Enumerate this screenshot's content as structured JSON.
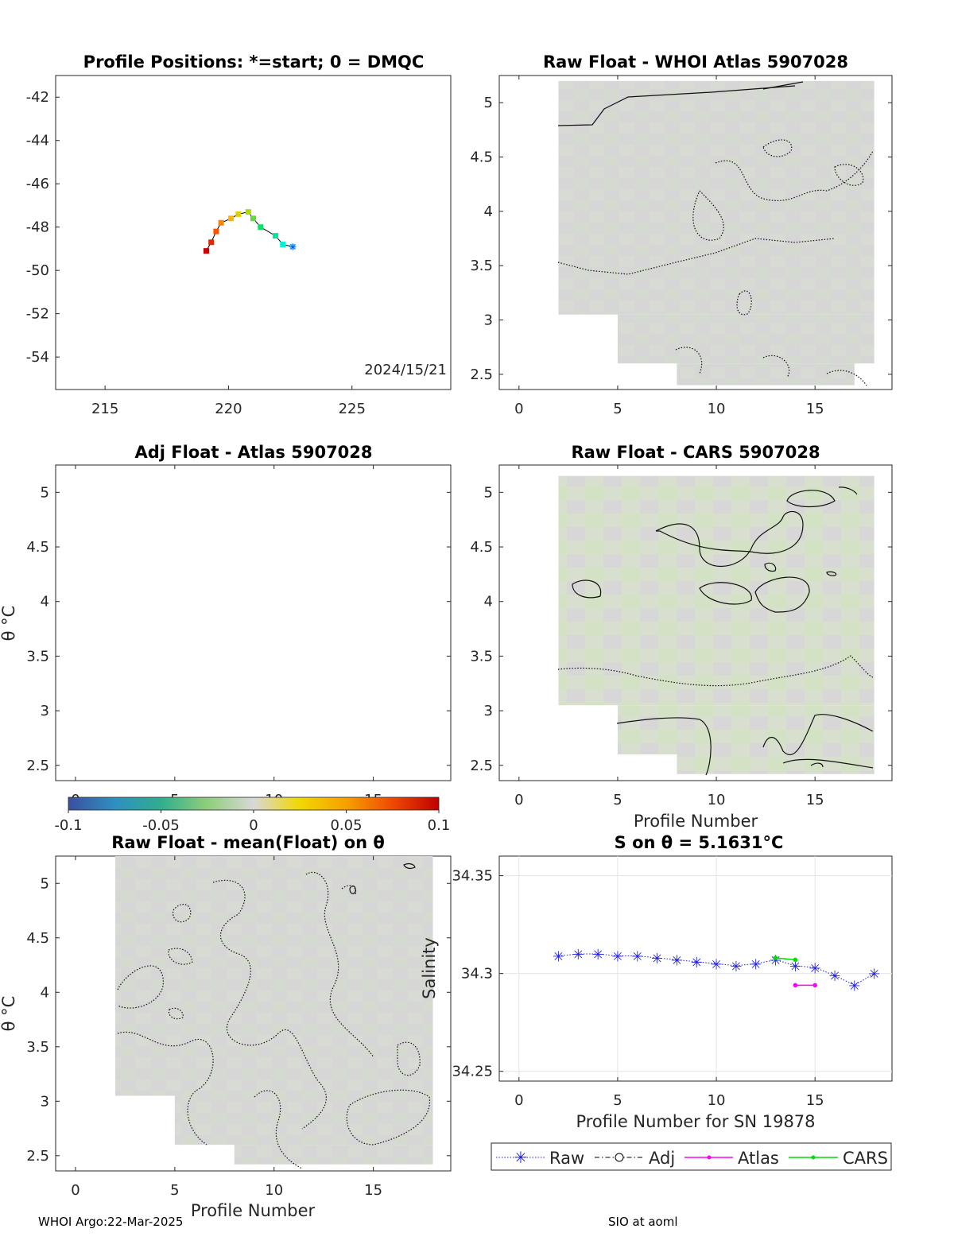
{
  "colors": {
    "heat_base": "#d6d6d6",
    "heat_green": "#d2e0c4",
    "raw": "#1f1fe6",
    "adj": "#000000",
    "atlas": "#ff00ff",
    "cars": "#00dd00"
  },
  "colorbar": {
    "ticks": [
      "-0.1",
      "-0.05",
      "0",
      "0.05",
      "0.1"
    ],
    "range": [
      -0.1,
      0.1
    ],
    "stops": [
      "#3b4fa0",
      "#2f8fc0",
      "#2fae8e",
      "#8fce7a",
      "#d8d8d8",
      "#f1d800",
      "#f7a000",
      "#ee4a00",
      "#c00000"
    ]
  },
  "panels": {
    "positions": {
      "title": "Profile Positions: *=start; 0 = DMQC",
      "date": "2024/15/21",
      "xticks": [
        "215",
        "220",
        "225"
      ],
      "yticks": [
        "-42",
        "-44",
        "-46",
        "-48",
        "-50",
        "-52",
        "-54"
      ]
    },
    "whoi": {
      "title": "Raw Float - WHOI Atlas  5907028"
    },
    "adj": {
      "title": "Adj Float - Atlas  5907028",
      "ylabel": "θ °C"
    },
    "cars": {
      "title": "Raw Float - CARS  5907028",
      "xlabel": "Profile Number"
    },
    "mean": {
      "title": "Raw Float - mean(Float) on θ",
      "ylabel": "θ °C",
      "xlabel": "Profile Number"
    },
    "salinity": {
      "title": "S on θ = 5.1631°C",
      "xlabel": "Profile Number for SN 19878",
      "ylabel": "Salinity"
    }
  },
  "theta_ticks": [
    "5",
    "4.5",
    "4",
    "3.5",
    "3",
    "2.5"
  ],
  "profile_ticks": [
    "0",
    "5",
    "10",
    "15"
  ],
  "legend": {
    "raw": "Raw",
    "adj": "Adj",
    "atlas": "Atlas",
    "cars": "CARS"
  },
  "footer": {
    "left": "WHOI Argo:22-Mar-2025",
    "right": "SIO at aoml"
  },
  "chart_data": [
    {
      "type": "scatter",
      "title": "Profile Positions: *=start; 0 = DMQC",
      "xlim": [
        213,
        229
      ],
      "ylim": [
        -55.5,
        -41
      ],
      "x": [
        222.6,
        222.2,
        221.9,
        221.3,
        221.0,
        220.8,
        220.4,
        220.1,
        219.7,
        219.5,
        219.3,
        219.1
      ],
      "y": [
        -48.9,
        -48.8,
        -48.4,
        -48.0,
        -47.6,
        -47.3,
        -47.4,
        -47.6,
        -47.8,
        -48.2,
        -48.7,
        -49.1
      ]
    },
    {
      "type": "heatmap",
      "title": "Raw Float - WHOI Atlas  5907028",
      "xlim": [
        -1,
        18.9
      ],
      "ylim": [
        2.36,
        5.25
      ],
      "rows": [
        {
          "x0": 2,
          "x1": 18,
          "y0": 3.05,
          "y1": 5.2
        },
        {
          "x0": 5,
          "x1": 18,
          "y0": 2.6,
          "y1": 3.05
        },
        {
          "x0": 8,
          "x1": 17,
          "y0": 2.4,
          "y1": 2.6
        }
      ]
    },
    {
      "type": "heatmap",
      "title": "Adj Float - Atlas  5907028",
      "xlim": [
        -1,
        18.9
      ],
      "ylim": [
        2.36,
        5.25
      ],
      "rows": []
    },
    {
      "type": "heatmap",
      "title": "Raw Float - CARS  5907028",
      "xlim": [
        -1,
        18.9
      ],
      "ylim": [
        2.36,
        5.25
      ],
      "rows": [
        {
          "x0": 2,
          "x1": 18,
          "y0": 3.05,
          "y1": 5.15
        },
        {
          "x0": 5,
          "x1": 18,
          "y0": 2.6,
          "y1": 3.05
        },
        {
          "x0": 8,
          "x1": 18,
          "y0": 2.42,
          "y1": 2.6
        }
      ]
    },
    {
      "type": "heatmap",
      "title": "Raw Float - mean(Float) on θ",
      "xlim": [
        -1,
        18.9
      ],
      "ylim": [
        2.36,
        5.25
      ],
      "rows": [
        {
          "x0": 2,
          "x1": 18,
          "y0": 3.05,
          "y1": 5.25
        },
        {
          "x0": 5,
          "x1": 18,
          "y0": 2.6,
          "y1": 3.05
        },
        {
          "x0": 8,
          "x1": 18,
          "y0": 2.42,
          "y1": 2.6
        }
      ]
    },
    {
      "type": "line",
      "title": "S on θ = 5.1631°C",
      "xlabel": "Profile Number for SN 19878",
      "ylabel": "Salinity",
      "xlim": [
        -1,
        18.9
      ],
      "ylim": [
        34.245,
        34.36
      ],
      "yticks": [
        "34.35",
        "34.3",
        "34.25"
      ],
      "series": [
        {
          "name": "Raw",
          "x": [
            2,
            3,
            4,
            5,
            6,
            7,
            8,
            9,
            10,
            11,
            12,
            13,
            14,
            15,
            16,
            17,
            18
          ],
          "y": [
            34.309,
            34.31,
            34.31,
            34.309,
            34.309,
            34.308,
            34.307,
            34.306,
            34.305,
            34.304,
            34.305,
            34.307,
            34.304,
            34.303,
            34.299,
            34.294,
            34.3
          ]
        },
        {
          "name": "Adj",
          "x": [],
          "y": []
        },
        {
          "name": "Atlas",
          "x": [
            14,
            15
          ],
          "y": [
            34.294,
            34.294
          ]
        },
        {
          "name": "CARS",
          "x": [
            13,
            14
          ],
          "y": [
            34.308,
            34.307
          ]
        }
      ]
    }
  ]
}
